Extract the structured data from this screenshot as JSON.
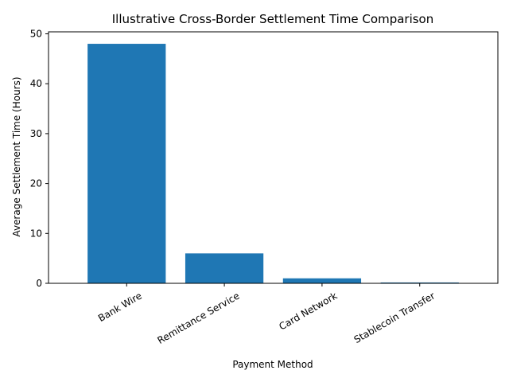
{
  "chart_data": {
    "type": "bar",
    "title": "Illustrative Cross-Border Settlement Time Comparison",
    "xlabel": "Payment Method",
    "ylabel": "Average Settlement Time (Hours)",
    "categories": [
      "Bank Wire",
      "Remittance Service",
      "Card Network",
      "Stablecoin Transfer"
    ],
    "values": [
      48,
      6,
      1,
      0.17
    ],
    "ylim": [
      0,
      50.4
    ],
    "yticks": [
      0,
      10,
      20,
      30,
      40,
      50
    ],
    "xtick_rotation": 30,
    "bar_color": "#1f77b4",
    "grid": false,
    "legend": "none"
  }
}
